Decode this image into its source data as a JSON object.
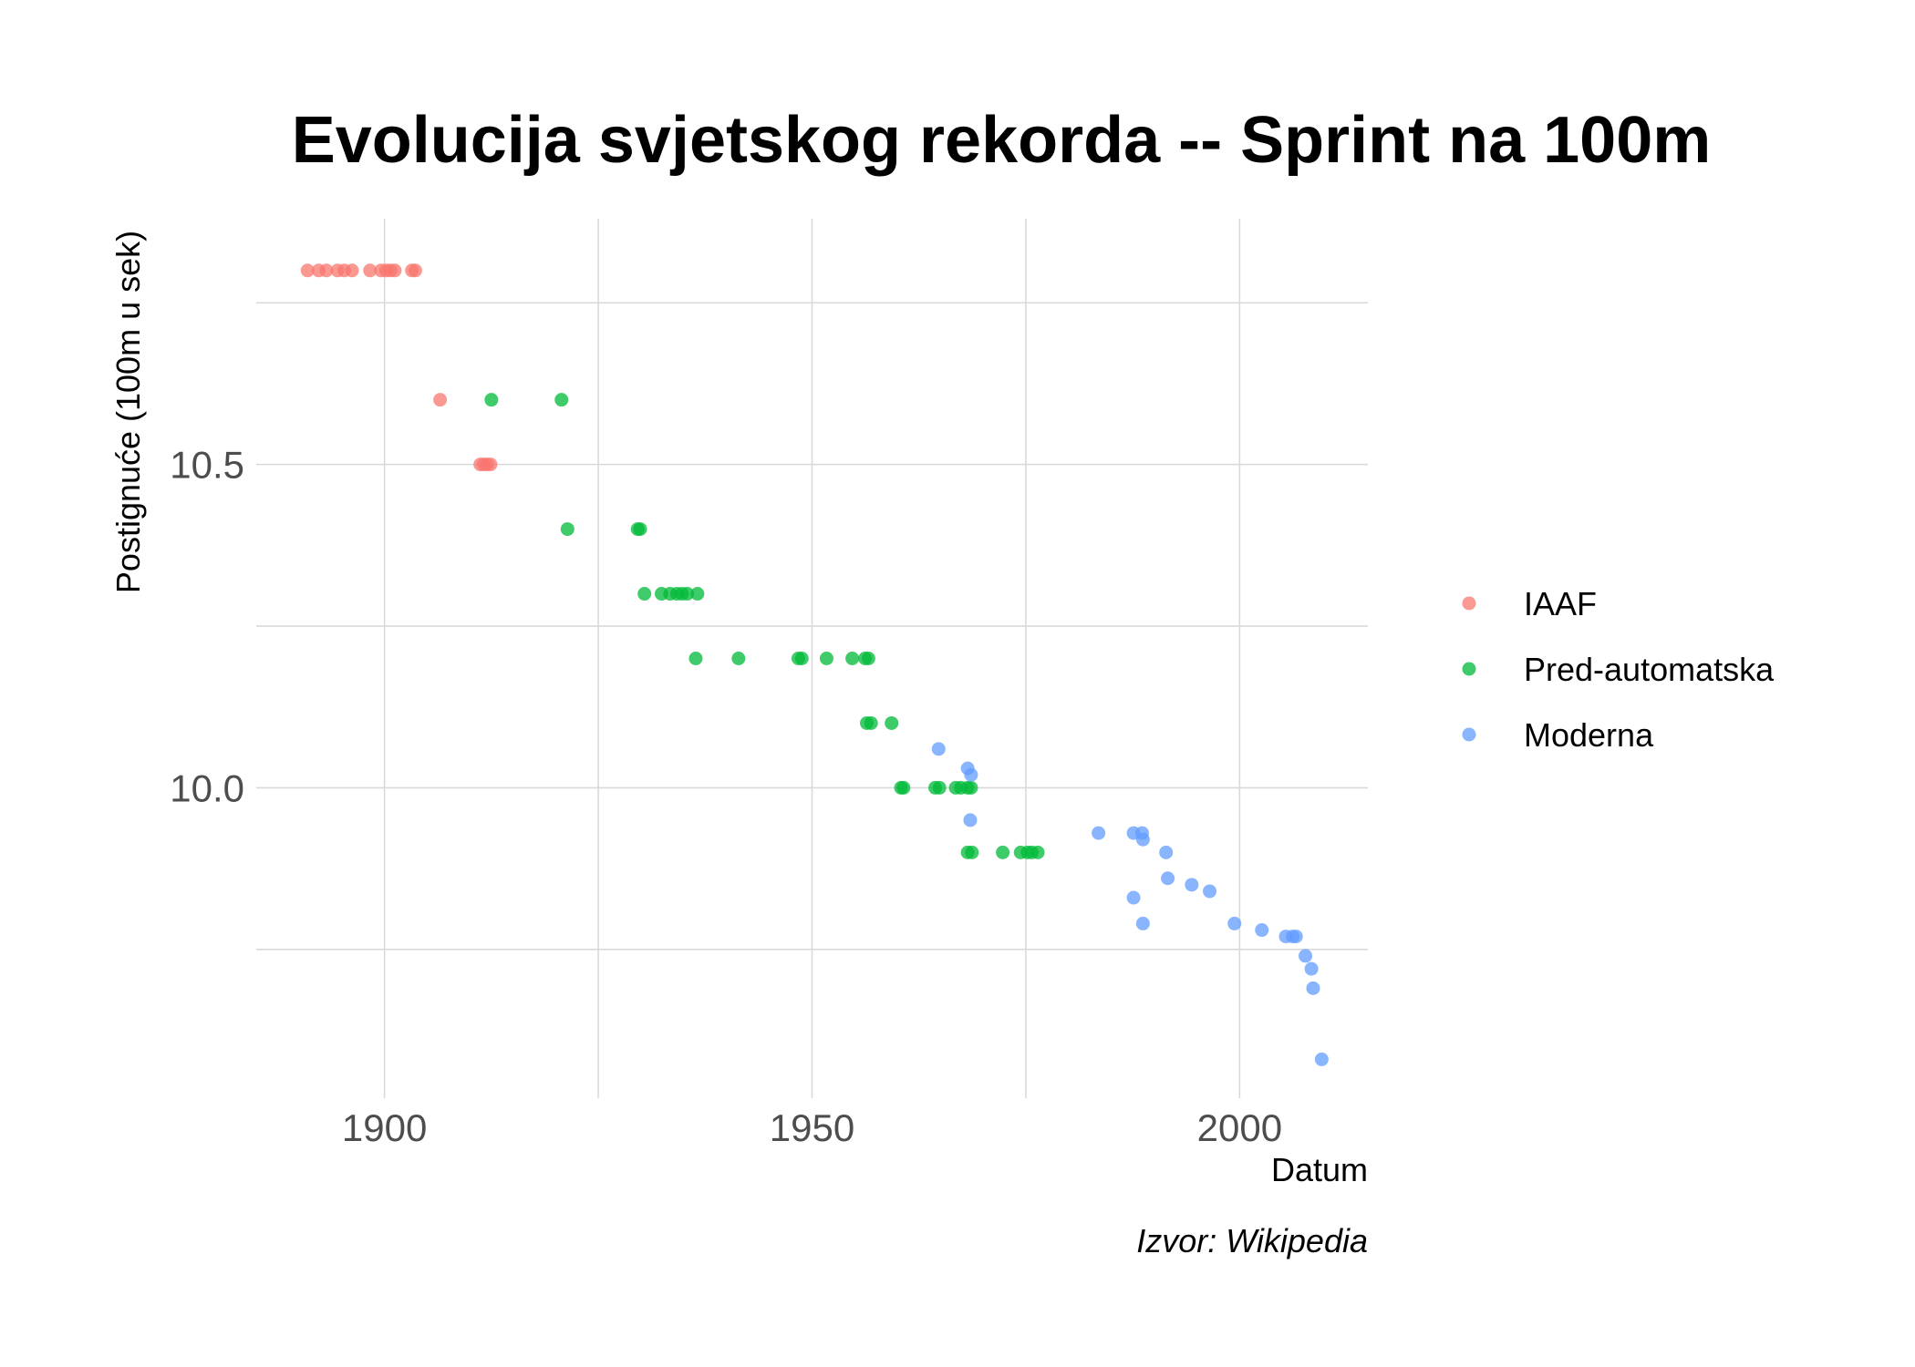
{
  "chart_data": {
    "type": "scatter",
    "title": "Evolucija svjetskog rekorda -- Sprint na 100m",
    "xlabel": "Datum",
    "ylabel": "Postignuće (100m u sek)",
    "caption": "Izvor: Wikipedia",
    "xlim": [
      1885,
      2015
    ],
    "ylim": [
      9.52,
      10.88
    ],
    "x_ticks": [
      {
        "value": 1900,
        "label": "1900"
      },
      {
        "value": 1950,
        "label": "1950"
      },
      {
        "value": 2000,
        "label": "2000"
      }
    ],
    "y_ticks": [
      {
        "value": 10.0,
        "label": "10.0"
      },
      {
        "value": 10.5,
        "label": "10.5"
      }
    ],
    "grid": true,
    "legend_position": "right",
    "series": [
      {
        "name": "IAAF",
        "color": "#F8766D",
        "points": [
          [
            1891.0,
            10.8
          ],
          [
            1892.3,
            10.8
          ],
          [
            1893.2,
            10.8
          ],
          [
            1894.5,
            10.8
          ],
          [
            1895.3,
            10.8
          ],
          [
            1896.2,
            10.8
          ],
          [
            1898.3,
            10.8
          ],
          [
            1899.6,
            10.8
          ],
          [
            1900.2,
            10.8
          ],
          [
            1900.7,
            10.8
          ],
          [
            1901.2,
            10.8
          ],
          [
            1903.2,
            10.8
          ],
          [
            1903.6,
            10.8
          ],
          [
            1906.5,
            10.6
          ],
          [
            1911.2,
            10.5
          ],
          [
            1911.6,
            10.5
          ],
          [
            1912.0,
            10.5
          ],
          [
            1912.4,
            10.5
          ]
        ]
      },
      {
        "name": "Pred-automatska",
        "color": "#00BA38",
        "points": [
          [
            1912.5,
            10.6
          ],
          [
            1920.7,
            10.6
          ],
          [
            1921.4,
            10.4
          ],
          [
            1929.6,
            10.4
          ],
          [
            1929.9,
            10.4
          ],
          [
            1930.4,
            10.3
          ],
          [
            1932.4,
            10.3
          ],
          [
            1933.4,
            10.3
          ],
          [
            1934.2,
            10.3
          ],
          [
            1934.8,
            10.3
          ],
          [
            1935.4,
            10.3
          ],
          [
            1936.6,
            10.3
          ],
          [
            1936.4,
            10.2
          ],
          [
            1941.4,
            10.2
          ],
          [
            1948.4,
            10.2
          ],
          [
            1948.8,
            10.2
          ],
          [
            1951.7,
            10.2
          ],
          [
            1954.7,
            10.2
          ],
          [
            1956.2,
            10.2
          ],
          [
            1956.6,
            10.2
          ],
          [
            1956.4,
            10.1
          ],
          [
            1956.9,
            10.1
          ],
          [
            1959.3,
            10.1
          ],
          [
            1960.4,
            10.0
          ],
          [
            1960.7,
            10.0
          ],
          [
            1964.4,
            10.0
          ],
          [
            1964.9,
            10.0
          ],
          [
            1966.8,
            10.0
          ],
          [
            1967.4,
            10.0
          ],
          [
            1968.2,
            10.0
          ],
          [
            1968.6,
            10.0
          ],
          [
            1968.2,
            9.9
          ],
          [
            1968.7,
            9.9
          ],
          [
            1972.3,
            9.9
          ],
          [
            1974.4,
            9.9
          ],
          [
            1975.2,
            9.9
          ],
          [
            1975.7,
            9.9
          ],
          [
            1976.4,
            9.9
          ]
        ]
      },
      {
        "name": "Moderna",
        "color": "#619CFF",
        "points": [
          [
            1964.8,
            10.06
          ],
          [
            1968.2,
            10.03
          ],
          [
            1968.6,
            10.02
          ],
          [
            1968.5,
            9.95
          ],
          [
            1983.5,
            9.93
          ],
          [
            1987.6,
            9.93
          ],
          [
            1988.6,
            9.93
          ],
          [
            1988.7,
            9.92
          ],
          [
            1987.6,
            9.83
          ],
          [
            1988.7,
            9.79
          ],
          [
            1991.4,
            9.9
          ],
          [
            1991.6,
            9.86
          ],
          [
            1994.4,
            9.85
          ],
          [
            1996.5,
            9.84
          ],
          [
            1999.4,
            9.79
          ],
          [
            2002.6,
            9.78
          ],
          [
            2005.4,
            9.77
          ],
          [
            2006.2,
            9.77
          ],
          [
            2006.6,
            9.77
          ],
          [
            2007.7,
            9.74
          ],
          [
            2008.4,
            9.72
          ],
          [
            2008.6,
            9.69
          ],
          [
            2009.6,
            9.58
          ]
        ]
      }
    ]
  }
}
